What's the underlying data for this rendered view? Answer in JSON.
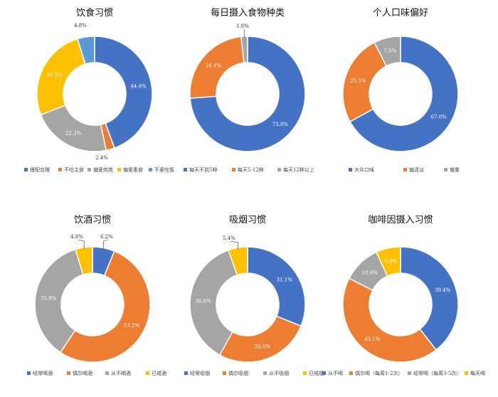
{
  "chart_data": [
    {
      "type": "pie",
      "title": "饮食习惯",
      "categories": [
        "搭配合理",
        "不吃主食",
        "偏爱肉类",
        "偏爱素食",
        "不爱吃饭"
      ],
      "values": [
        44.4,
        2.4,
        22.3,
        26.1,
        4.8
      ],
      "labels": [
        "44.4%",
        "2.4%",
        "22.3%",
        "26.1%",
        "4.8%"
      ],
      "colors": [
        "#4472C4",
        "#ED7D31",
        "#A5A5A5",
        "#FFC000",
        "#5B9BD5"
      ],
      "legend": "bottom"
    },
    {
      "type": "pie",
      "title": "每日摄入食物种类",
      "categories": [
        "每天不到5种",
        "每天5-12种",
        "每天12种以上"
      ],
      "values": [
        73.8,
        24.4,
        1.8
      ],
      "labels": [
        "73.8%",
        "24.4%",
        "1.8%"
      ],
      "colors": [
        "#4472C4",
        "#ED7D31",
        "#A5A5A5"
      ],
      "legend": "bottom"
    },
    {
      "type": "pie",
      "title": "个人口味偏好",
      "categories": [
        "大众口味",
        "偏清淡",
        "偏重"
      ],
      "values": [
        67.0,
        25.5,
        7.5
      ],
      "labels": [
        "67.0%",
        "25.5%",
        "7.5%"
      ],
      "colors": [
        "#4472C4",
        "#ED7D31",
        "#A5A5A5"
      ],
      "legend": "bottom"
    },
    {
      "type": "pie",
      "title": "饮酒习惯",
      "categories": [
        "经常喝酒",
        "偶尔喝酒",
        "从不喝酒",
        "已戒酒"
      ],
      "values": [
        6.2,
        53.2,
        35.8,
        4.8
      ],
      "labels": [
        "6.2%",
        "53.2%",
        "35.8%",
        "4.8%"
      ],
      "colors": [
        "#4472C4",
        "#ED7D31",
        "#A5A5A5",
        "#FFC000"
      ],
      "legend": "bottom"
    },
    {
      "type": "pie",
      "title": "吸烟习惯",
      "categories": [
        "经常吸烟",
        "偶尔吸烟",
        "从不吸烟",
        "已戒烟"
      ],
      "values": [
        31.1,
        26.9,
        36.6,
        5.4
      ],
      "labels": [
        "31.1%",
        "26.9%",
        "36.6%",
        "5.4%"
      ],
      "colors": [
        "#4472C4",
        "#ED7D31",
        "#A5A5A5",
        "#FFC000"
      ],
      "legend": "bottom"
    },
    {
      "type": "pie",
      "title": "咖啡因摄入习惯",
      "categories": [
        "从不喝",
        "偶尔喝（每周1-2次）",
        "经常喝（每周3-5次）",
        "每天喝"
      ],
      "values": [
        39.4,
        43.1,
        10.6,
        6.9
      ],
      "labels": [
        "39.4%",
        "43.1%",
        "10.6%",
        "6.9%"
      ],
      "colors": [
        "#4472C4",
        "#ED7D31",
        "#A5A5A5",
        "#FFC000"
      ],
      "legend": "bottom"
    }
  ]
}
